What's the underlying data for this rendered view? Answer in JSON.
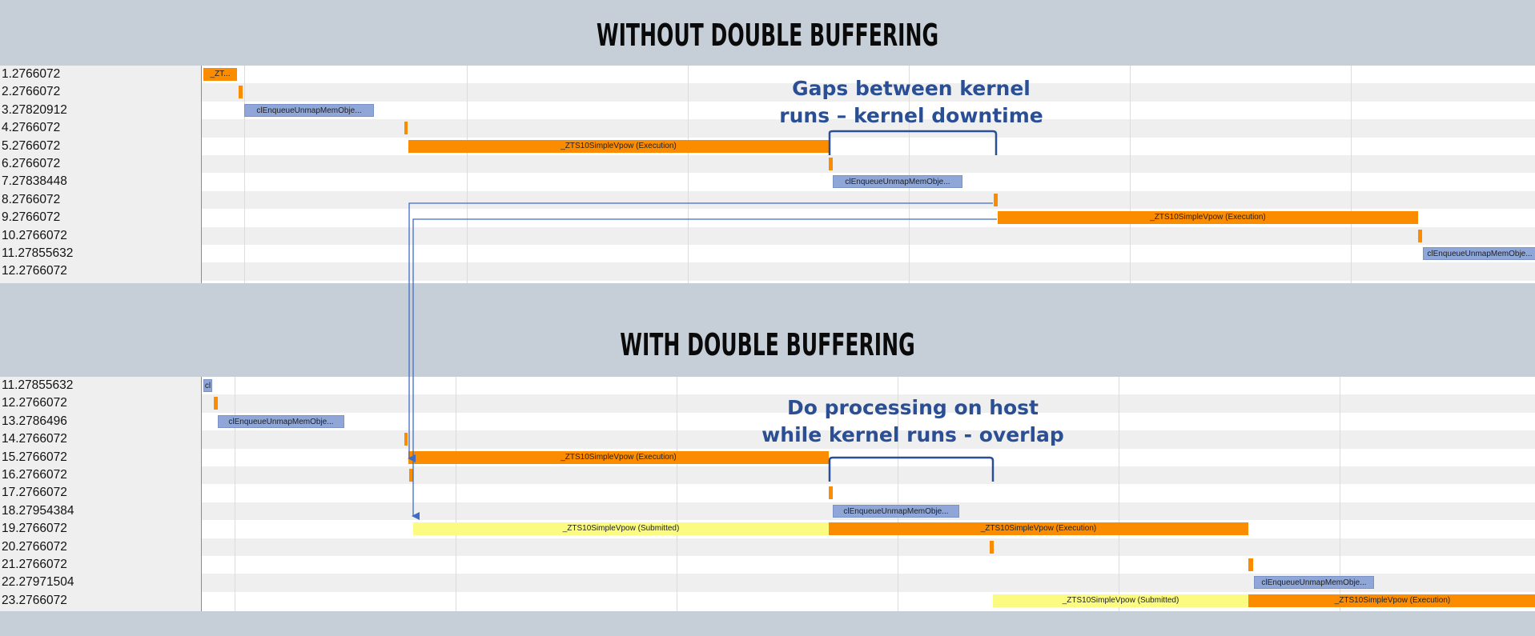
{
  "top": {
    "title": "WITHOUT DOUBLE BUFFERING",
    "rows": [
      "1.2766072",
      "2.2766072",
      "3.27820912",
      "4.2766072",
      "5.2766072",
      "6.2766072",
      "7.27838448",
      "8.2766072",
      "9.2766072",
      "10.2766072",
      "11.27855632",
      "12.2766072"
    ],
    "bars": [
      {
        "row": 0,
        "start": 0,
        "end": 42,
        "color": "orange",
        "label": "_ZT..."
      },
      {
        "row": 1,
        "start": 44,
        "end": 49,
        "color": "orange",
        "label": ""
      },
      {
        "row": 2,
        "start": 51,
        "end": 213,
        "color": "blue",
        "label": "clEnqueueUnmapMemObje..."
      },
      {
        "row": 3,
        "start": 251,
        "end": 255,
        "color": "orange",
        "label": ""
      },
      {
        "row": 4,
        "start": 256,
        "end": 781,
        "color": "orange",
        "label": "_ZTS10SimpleVpow (Execution)"
      },
      {
        "row": 5,
        "start": 781,
        "end": 786,
        "color": "orange",
        "label": ""
      },
      {
        "row": 6,
        "start": 786,
        "end": 948,
        "color": "blue",
        "label": "clEnqueueUnmapMemObje..."
      },
      {
        "row": 7,
        "start": 987,
        "end": 992,
        "color": "orange",
        "label": ""
      },
      {
        "row": 8,
        "start": 992,
        "end": 1517,
        "color": "orange",
        "label": "_ZTS10SimpleVpow (Execution)"
      },
      {
        "row": 9,
        "start": 1517,
        "end": 1522,
        "color": "orange",
        "label": ""
      },
      {
        "row": 10,
        "start": 1523,
        "end": 1665,
        "color": "blue",
        "label": "clEnqueueUnmapMemObje..."
      }
    ],
    "annotation": [
      "Gaps between kernel",
      "runs – kernel downtime"
    ]
  },
  "bottom": {
    "title": "WITH DOUBLE BUFFERING",
    "rows": [
      "11.27855632",
      "12.2766072",
      "13.2786496",
      "14.2766072",
      "15.2766072",
      "16.2766072",
      "17.2766072",
      "18.27954384",
      "19.2766072",
      "20.2766072",
      "21.2766072",
      "22.27971504",
      "23.2766072"
    ],
    "bars": [
      {
        "row": 0,
        "start": 0,
        "end": 11,
        "color": "blue",
        "label": "cl"
      },
      {
        "row": 1,
        "start": 13,
        "end": 18,
        "color": "orange",
        "label": ""
      },
      {
        "row": 2,
        "start": 18,
        "end": 176,
        "color": "blue",
        "label": "clEnqueueUnmapMemObje..."
      },
      {
        "row": 3,
        "start": 251,
        "end": 255,
        "color": "orange",
        "label": ""
      },
      {
        "row": 4,
        "start": 256,
        "end": 781,
        "color": "orange",
        "label": "_ZTS10SimpleVpow (Execution)"
      },
      {
        "row": 5,
        "start": 257,
        "end": 262,
        "color": "orange",
        "label": ""
      },
      {
        "row": 6,
        "start": 781,
        "end": 786,
        "color": "orange",
        "label": ""
      },
      {
        "row": 7,
        "start": 786,
        "end": 944,
        "color": "blue",
        "label": "clEnqueueUnmapMemObje..."
      },
      {
        "row": 8,
        "start": 262,
        "end": 781,
        "color": "yellow",
        "label": "_ZTS10SimpleVpow (Submitted)"
      },
      {
        "row": 8,
        "start": 781,
        "end": 1305,
        "color": "orange",
        "label": "_ZTS10SimpleVpow (Execution)"
      },
      {
        "row": 9,
        "start": 982,
        "end": 987,
        "color": "orange",
        "label": ""
      },
      {
        "row": 10,
        "start": 1305,
        "end": 1311,
        "color": "orange",
        "label": ""
      },
      {
        "row": 11,
        "start": 1312,
        "end": 1462,
        "color": "blue",
        "label": "clEnqueueUnmapMemObje..."
      },
      {
        "row": 12,
        "start": 986,
        "end": 1305,
        "color": "yellow",
        "label": "_ZTS10SimpleVpow (Submitted)"
      },
      {
        "row": 12,
        "start": 1305,
        "end": 1665,
        "color": "orange",
        "label": "_ZTS10SimpleVpow (Execution)"
      }
    ],
    "annotation": [
      "Do processing on host",
      "while kernel runs - overlap"
    ]
  },
  "colors": {
    "orange": "#fb8c00",
    "blue": "#8ea6d8",
    "yellow": "#fbfb82",
    "annotation": "#2b4f94",
    "arrow": "#3f6cc7"
  }
}
